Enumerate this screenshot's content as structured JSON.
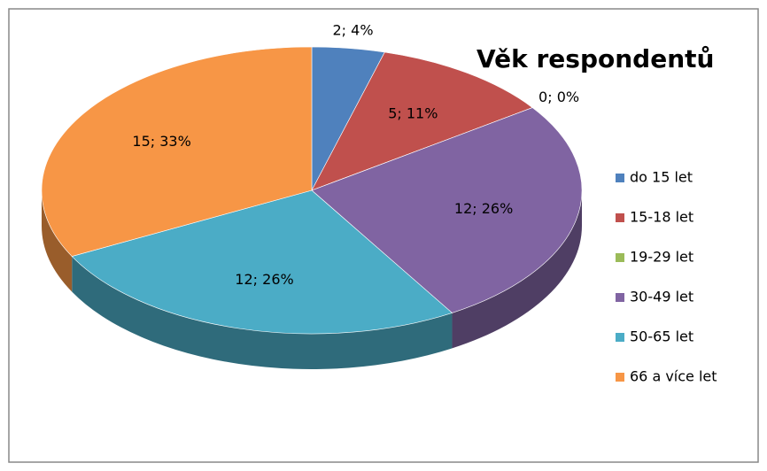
{
  "chart_data": {
    "type": "pie3d",
    "title": "Věk respondentů",
    "categories": [
      "do 15 let",
      "15-18 let",
      "19-29 let",
      "30-49 let",
      "50-65 let",
      "66 a více let"
    ],
    "values": [
      2,
      5,
      0,
      12,
      12,
      15
    ],
    "value_labels": [
      "2; 4%",
      "5; 11%",
      "0; 0%",
      "12; 26%",
      "12; 26%",
      "15; 33%"
    ],
    "colors": [
      "#4f81bd",
      "#c0504d",
      "#9bbb59",
      "#8064a2",
      "#4bacc6",
      "#f79646"
    ],
    "legend": "right"
  }
}
